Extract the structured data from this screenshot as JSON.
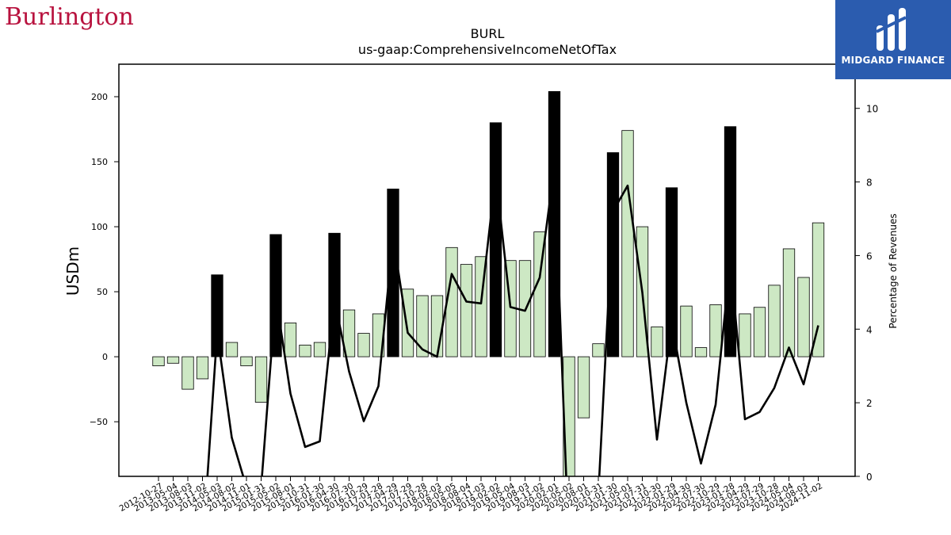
{
  "logos": {
    "brand_text": "Burlington",
    "midgard_text": "MIDGARD FINANCE"
  },
  "chart_data": {
    "type": "bar",
    "title": "BURL",
    "subtitle": "us-gaap:ComprehensiveIncomeNetOfTax",
    "ylabel": "USDm",
    "y2label": "Percentage of Revenues",
    "ylim": [
      -92,
      225
    ],
    "y2lim": [
      0,
      11.2
    ],
    "yticks": [
      -50,
      0,
      50,
      100,
      150,
      200
    ],
    "y2ticks": [
      0,
      2,
      4,
      6,
      8,
      10
    ],
    "colors": {
      "quarter_bar": "#cde8c4",
      "annual_bar": "#000000",
      "bar_edge": "#000000",
      "line": "#000000"
    },
    "categories": [
      "2012-10-27",
      "2013-05-04",
      "2013-08-03",
      "2013-11-02",
      "2014-05-03",
      "2014-08-02",
      "2014-11-01",
      "2015-01-31",
      "2015-05-02",
      "2015-08-01",
      "2015-10-31",
      "2016-01-30",
      "2016-04-30",
      "2016-07-30",
      "2016-10-29",
      "2017-01-28",
      "2017-04-29",
      "2017-07-29",
      "2017-10-28",
      "2018-02-03",
      "2018-05-05",
      "2018-08-04",
      "2018-11-03",
      "2019-02-02",
      "2019-05-04",
      "2019-08-03",
      "2019-11-02",
      "2020-02-01",
      "2020-05-02",
      "2020-08-01",
      "2020-10-31",
      "2021-01-30",
      "2021-05-01",
      "2021-07-31",
      "2021-10-30",
      "2022-01-29",
      "2022-04-30",
      "2022-07-30",
      "2022-10-29",
      "2023-01-28",
      "2023-04-29",
      "2023-07-29",
      "2023-10-28",
      "2024-05-04",
      "2024-08-03",
      "2024-11-02"
    ],
    "xtick_labels": [
      "2012-10-27",
      "2013-05-04",
      "2013-08-03",
      "2013-11-02",
      "2014-05-03",
      "2014-08-02",
      "2014-11-01",
      "2015-01-31",
      "2015-05-02",
      "2015-08-01",
      "2015-10-31",
      "2016-01-30",
      "2016-04-30",
      "2016-07-30",
      "2016-10-29",
      "2017-01-28",
      "2017-04-29",
      "2017-07-29",
      "2017-10-28",
      "2018-02-03",
      "2018-05-05",
      "2018-08-04",
      "2018-11-03",
      "2019-02-02",
      "2019-05-04",
      "2019-08-03",
      "2019-11-02",
      "2020-02-01",
      "2020-05-02",
      "2020-08-01",
      "2020-10-31",
      "2021-01-30",
      "2021-05-01",
      "2021-07-31",
      "2021-10-30",
      "2022-01-29",
      "2022-04-30",
      "2022-07-30",
      "2022-10-29",
      "2023-01-28",
      "2023-04-29",
      "2023-07-29",
      "2023-10-28",
      "2024-05-04",
      "2024-08-03",
      "2024-11-02"
    ],
    "values": [
      -7,
      -5,
      -25,
      -17,
      63,
      11,
      -7,
      -35,
      94,
      26,
      9,
      11,
      95,
      36,
      18,
      33,
      129,
      52,
      47,
      47,
      84,
      71,
      77,
      180,
      74,
      74,
      96,
      204,
      -92,
      -47,
      10,
      157,
      174,
      100,
      23,
      130,
      39,
      7,
      40,
      177,
      33,
      38,
      55,
      83,
      61,
      103
    ],
    "bar_kind": [
      "q",
      "q",
      "q",
      "q",
      "a",
      "q",
      "q",
      "q",
      "a",
      "q",
      "q",
      "q",
      "a",
      "q",
      "q",
      "q",
      "a",
      "q",
      "q",
      "q",
      "q",
      "q",
      "q",
      "a",
      "q",
      "q",
      "q",
      "a",
      "q",
      "q",
      "q",
      "a",
      "q",
      "q",
      "q",
      "a",
      "q",
      "q",
      "q",
      "a",
      "q",
      "q",
      "q",
      "q",
      "q",
      "q"
    ],
    "pct_of_revenues": [
      -2,
      -2,
      -2,
      -2,
      3.9,
      1.05,
      -0.3,
      -0.3,
      4.9,
      2.25,
      0.8,
      0.95,
      4.8,
      2.85,
      1.5,
      2.45,
      6.5,
      3.9,
      3.45,
      3.25,
      5.5,
      4.75,
      4.7,
      8.2,
      4.6,
      4.5,
      5.4,
      8.4,
      -2,
      -2,
      -0.5,
      7.2,
      7.9,
      5.0,
      1.0,
      4.2,
      2.0,
      0.35,
      1.95,
      5.85,
      1.55,
      1.75,
      2.4,
      3.5,
      2.5,
      4.1
    ]
  }
}
